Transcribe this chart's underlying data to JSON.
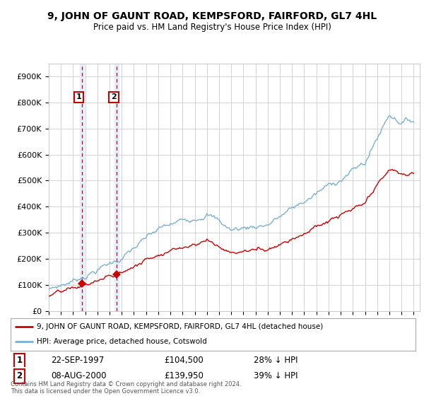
{
  "title": "9, JOHN OF GAUNT ROAD, KEMPSFORD, FAIRFORD, GL7 4HL",
  "subtitle": "Price paid vs. HM Land Registry's House Price Index (HPI)",
  "ylabel_ticks": [
    "£0",
    "£100K",
    "£200K",
    "£300K",
    "£400K",
    "£500K",
    "£600K",
    "£700K",
    "£800K",
    "£900K"
  ],
  "ytick_values": [
    0,
    100000,
    200000,
    300000,
    400000,
    500000,
    600000,
    700000,
    800000,
    900000
  ],
  "ylim": [
    0,
    950000
  ],
  "xlim_start": 1995.0,
  "xlim_end": 2025.5,
  "sale1_date": 1997.72,
  "sale1_price": 104500,
  "sale1_label": "1",
  "sale2_date": 2000.6,
  "sale2_price": 139950,
  "sale2_label": "2",
  "line_color_red": "#cc0000",
  "line_color_blue": "#7ab0d4",
  "shade_color": "#ddeeff",
  "grid_color": "#cccccc",
  "legend_line1": "9, JOHN OF GAUNT ROAD, KEMPSFORD, FAIRFORD, GL7 4HL (detached house)",
  "legend_line2": "HPI: Average price, detached house, Cotswold",
  "footer": "Contains HM Land Registry data © Crown copyright and database right 2024.\nThis data is licensed under the Open Government Licence v3.0.",
  "xtick_years": [
    1995,
    1996,
    1997,
    1998,
    1999,
    2000,
    2001,
    2002,
    2003,
    2004,
    2005,
    2006,
    2007,
    2008,
    2009,
    2010,
    2011,
    2012,
    2013,
    2014,
    2015,
    2016,
    2017,
    2018,
    2019,
    2020,
    2021,
    2022,
    2023,
    2024,
    2025
  ]
}
